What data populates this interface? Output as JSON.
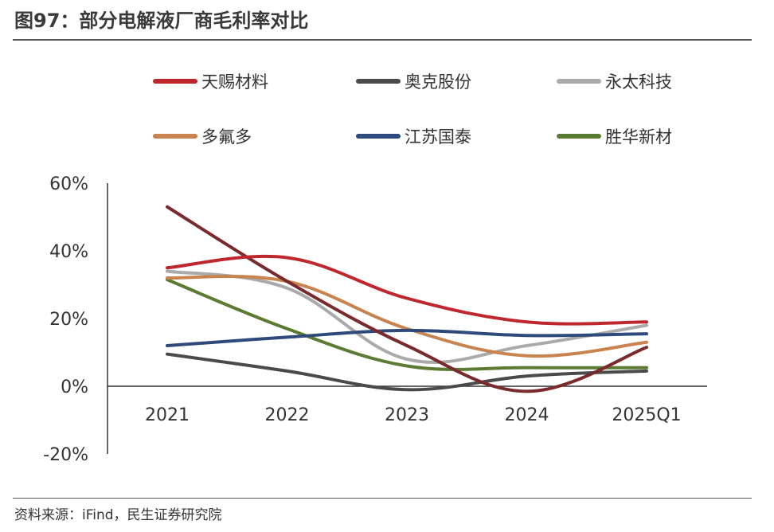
{
  "title": "图97：部分电解液厂商毛利率对比",
  "source": "资料来源：iFind，民生证券研究院",
  "chart_data": {
    "type": "line",
    "categories": [
      "2021",
      "2022",
      "2023",
      "2024",
      "2025Q1"
    ],
    "y_ticks": [
      "60%",
      "40%",
      "20%",
      "0%",
      "-20%"
    ],
    "ylim": [
      -20,
      60
    ],
    "grid": false,
    "legend_position": "top",
    "series": [
      {
        "name": "天赐材料",
        "color": "#c0272d",
        "values": [
          35,
          38,
          26,
          19,
          19
        ]
      },
      {
        "name": "奥克股份",
        "color": "#4a4a4a",
        "values": [
          9.5,
          4.5,
          -1,
          3,
          4.5
        ]
      },
      {
        "name": "永太科技",
        "color": "#aaaaaa",
        "values": [
          34,
          29,
          8,
          12,
          18
        ]
      },
      {
        "name": "多氟多",
        "color": "#c8834f",
        "values": [
          32,
          31,
          17,
          9,
          13
        ]
      },
      {
        "name": "江苏国泰",
        "color": "#2e4a7a",
        "values": [
          12,
          14.5,
          16.5,
          15,
          15.5
        ]
      },
      {
        "name": "胜华新材",
        "color": "#5b7a32",
        "values": [
          31.5,
          17,
          6,
          5.5,
          5.5
        ]
      },
      {
        "name": "",
        "color": "#7a2a2c",
        "values": [
          53,
          31,
          12,
          -1.5,
          11.5
        ]
      }
    ]
  }
}
